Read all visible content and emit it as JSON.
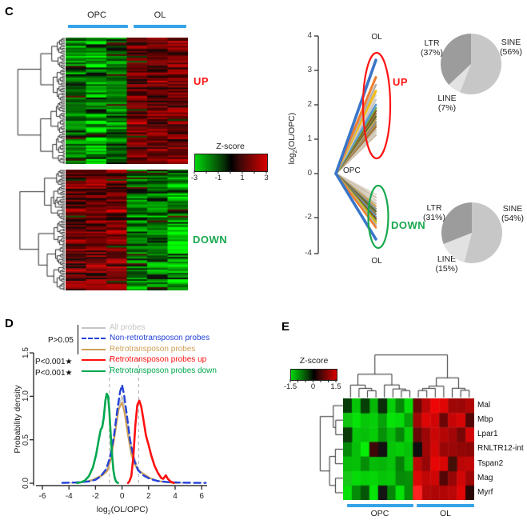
{
  "ui": {
    "panelC": {
      "label": "C",
      "opc": "OPC",
      "ol": "OL",
      "up": "UP",
      "down": "DOWN",
      "up_color": "#ff1414",
      "down_color": "#17a84e",
      "bar_color": "#35a3e8",
      "colorbar_title": "Z-score",
      "colorbar_ticks": [
        "-3",
        "-1",
        "1",
        "3"
      ]
    },
    "fan": {
      "ylabel_base": "log",
      "ylabel_sub": "2",
      "ylabel_rest": "(OL/OPC)",
      "top_label": "OL",
      "origin_label": "OPC",
      "bottom_label": "OL",
      "up": "UP",
      "down": "DOWN",
      "up_color": "#ff1414",
      "down_color": "#17a84e"
    },
    "panelD": {
      "label": "D",
      "p_group": "P>0.05",
      "p_up": "P<0.001★",
      "p_down": "P<0.001★",
      "ylabel": "Probability density",
      "xlabel_base": "log",
      "xlabel_sub": "2",
      "xlabel_rest": "(OL/OPC)",
      "legend": [
        {
          "label": "All probes",
          "color": "#c4c4c4",
          "dash": false
        },
        {
          "label": "Non-retrotransposon probes",
          "color": "#2442d8",
          "dash": true
        },
        {
          "label": "Retrotransposon probes",
          "color": "#cfa057",
          "dash": false
        },
        {
          "label": "Retrotransposon probes up",
          "color": "#ff1010",
          "dash": false
        },
        {
          "label": "Retrotransposon probes down",
          "color": "#00a74f",
          "dash": false
        }
      ]
    },
    "panelE": {
      "label": "E",
      "colorbar_title": "Z-score",
      "colorbar_ticks": [
        "-1.5",
        "0",
        "1.5"
      ],
      "opc": "OPC",
      "ol": "OL",
      "bar_color": "#35a3e8"
    }
  },
  "chart_data": [
    {
      "id": "panelC-heatmap-up",
      "type": "heatmap",
      "col_groups": [
        {
          "label": "OPC",
          "cols": 3
        },
        {
          "label": "OL",
          "cols": 3
        }
      ],
      "cluster_label": "UP",
      "zscale": {
        "min": -3,
        "max": 3,
        "low_color": "#00d60a",
        "mid_color": "#000000",
        "high_color": "#d90000"
      },
      "pattern": "rows clustered by dendrogram; OPC columns predominantly green (low z-score), OL columns predominantly red (high z-score)"
    },
    {
      "id": "panelC-heatmap-down",
      "type": "heatmap",
      "col_groups": [
        {
          "label": "OPC",
          "cols": 3
        },
        {
          "label": "OL",
          "cols": 3
        }
      ],
      "cluster_label": "DOWN",
      "zscale": {
        "min": -3,
        "max": 3
      },
      "pattern": "OPC columns predominantly red (high z-score), OL columns predominantly green (low z-score)"
    },
    {
      "id": "fan-parallel-plot",
      "type": "line",
      "ylabel": "log2(OL/OPC)",
      "yticks": [
        4,
        3,
        2,
        1,
        0,
        -2,
        -4
      ],
      "x_categories": [
        "OPC",
        "OL"
      ],
      "up_lines": [
        {
          "v": 3.3,
          "c": "#3a76c8",
          "w": 3.6
        },
        {
          "v": 2.8,
          "c": "#ee7d2f",
          "w": 3
        },
        {
          "v": 2.58,
          "c": "#b3b0ad",
          "w": 2.6
        },
        {
          "v": 2.4,
          "c": "#f2bb0e",
          "w": 3
        },
        {
          "v": 2.28,
          "c": "#d8d2cb",
          "w": 2.2
        },
        {
          "v": 2.15,
          "c": "#c9c2ba",
          "w": 2.2
        },
        {
          "v": 2.0,
          "c": "#5b9bd5",
          "w": 2.8
        },
        {
          "v": 1.9,
          "c": "#6faa45",
          "w": 2.8
        },
        {
          "v": 1.82,
          "c": "#8a4a12",
          "w": 2.4
        },
        {
          "v": 1.74,
          "c": "#9e7b45",
          "w": 2.4
        },
        {
          "v": 1.66,
          "c": "#4d6a2d",
          "w": 2.4
        },
        {
          "v": 1.58,
          "c": "#caa355",
          "w": 2.4
        },
        {
          "v": 1.5,
          "c": "#8c8c8c",
          "w": 2.4
        },
        {
          "v": 1.43,
          "c": "#b08d57",
          "w": 2.4
        },
        {
          "v": 1.36,
          "c": "#a4702c",
          "w": 2.4
        },
        {
          "v": 1.28,
          "c": "#c9bfae",
          "w": 2.4
        },
        {
          "v": 1.2,
          "c": "#d7cfc2",
          "w": 2.4
        },
        {
          "v": 1.12,
          "c": "#cdbfa8",
          "w": 2.4
        }
      ],
      "down_lines": [
        {
          "v": -3.2,
          "c": "#3a76c8",
          "w": 3.6
        },
        {
          "v": -2.55,
          "c": "#ee7d2f",
          "w": 2.5
        },
        {
          "v": -2.42,
          "c": "#b3b0ad",
          "w": 2.4
        },
        {
          "v": -2.3,
          "c": "#f2bb0e",
          "w": 2.5
        },
        {
          "v": -2.18,
          "c": "#6faa45",
          "w": 2.5
        },
        {
          "v": -2.06,
          "c": "#8a4a12",
          "w": 2.4
        },
        {
          "v": -1.95,
          "c": "#5b9bd5",
          "w": 2.2
        },
        {
          "v": -1.84,
          "c": "#9e7b45",
          "w": 2.2
        },
        {
          "v": -1.72,
          "c": "#4d6a2d",
          "w": 2.2
        },
        {
          "v": -1.6,
          "c": "#8c8c8c",
          "w": 2.2
        },
        {
          "v": -1.48,
          "c": "#caa355",
          "w": 2.2
        },
        {
          "v": -1.36,
          "c": "#c9bfae",
          "w": 2.2
        },
        {
          "v": -1.22,
          "c": "#d7cfc2",
          "w": 2.2
        },
        {
          "v": -1.08,
          "c": "#cdbfa8",
          "w": 2.2
        },
        {
          "v": -0.95,
          "c": "#e0d9cf",
          "w": 2.2
        }
      ]
    },
    {
      "id": "pie-up",
      "type": "pie",
      "labels": [
        "SINE",
        "LINE",
        "LTR"
      ],
      "pct_labels": [
        "(56%)",
        "(7%)",
        "(37%)"
      ],
      "values": [
        56,
        7,
        37
      ],
      "colors": [
        "#c7c7c7",
        "#e2e2e2",
        "#9c9c9c"
      ]
    },
    {
      "id": "pie-down",
      "type": "pie",
      "labels": [
        "SINE",
        "LINE",
        "LTR"
      ],
      "pct_labels": [
        "(54%)",
        "(15%)",
        "(31%)"
      ],
      "values": [
        54,
        15,
        31
      ],
      "colors": [
        "#c7c7c7",
        "#e2e2e2",
        "#9c9c9c"
      ]
    },
    {
      "id": "density",
      "type": "line",
      "xlabel": "log2(OL/OPC)",
      "ylabel": "Probability density",
      "xticks": [
        -6,
        -4,
        -2,
        0,
        2,
        4,
        6
      ],
      "yticks": [
        0,
        0.5,
        1,
        1.5
      ],
      "xlim": [
        -6.5,
        6.5
      ],
      "ylim": [
        0,
        1.5
      ],
      "vlines": [
        -0.95,
        1.25
      ],
      "series": [
        {
          "name": "All probes",
          "color": "#c4c4c4",
          "dash": false,
          "width": 1.8,
          "points": [
            [
              -4.4,
              0
            ],
            [
              -3,
              0.01
            ],
            [
              -2.2,
              0.03
            ],
            [
              -1.6,
              0.07
            ],
            [
              -1.2,
              0.13
            ],
            [
              -0.8,
              0.32
            ],
            [
              -0.5,
              0.62
            ],
            [
              -0.25,
              0.88
            ],
            [
              0,
              1.0
            ],
            [
              0.25,
              0.85
            ],
            [
              0.5,
              0.6
            ],
            [
              0.8,
              0.35
            ],
            [
              1.2,
              0.17
            ],
            [
              1.6,
              0.1
            ],
            [
              2,
              0.06
            ],
            [
              2.6,
              0.03
            ],
            [
              3.2,
              0.015
            ],
            [
              4,
              0.005
            ],
            [
              5,
              0.002
            ]
          ]
        },
        {
          "name": "Retrotransposon probes",
          "color": "#cfa057",
          "dash": false,
          "width": 2,
          "points": [
            [
              -3.6,
              0.005
            ],
            [
              -2.8,
              0.015
            ],
            [
              -2.2,
              0.04
            ],
            [
              -1.8,
              0.07
            ],
            [
              -1.4,
              0.1
            ],
            [
              -1.1,
              0.14
            ],
            [
              -0.8,
              0.3
            ],
            [
              -0.5,
              0.6
            ],
            [
              -0.25,
              0.85
            ],
            [
              0,
              0.93
            ],
            [
              0.2,
              0.8
            ],
            [
              0.45,
              0.55
            ],
            [
              0.7,
              0.33
            ],
            [
              1,
              0.2
            ],
            [
              1.3,
              0.14
            ],
            [
              1.7,
              0.1
            ],
            [
              2.1,
              0.06
            ],
            [
              2.6,
              0.03
            ],
            [
              3.1,
              0.015
            ],
            [
              3.8,
              0.005
            ],
            [
              4.2,
              0.002
            ]
          ]
        },
        {
          "name": "Non-retrotransposon probes",
          "color": "#2442d8",
          "dash": true,
          "width": 2.4,
          "points": [
            [
              -4.5,
              0.004
            ],
            [
              -3.5,
              0.008
            ],
            [
              -2.5,
              0.02
            ],
            [
              -2,
              0.04
            ],
            [
              -1.6,
              0.08
            ],
            [
              -1.2,
              0.16
            ],
            [
              -0.9,
              0.3
            ],
            [
              -0.6,
              0.55
            ],
            [
              -0.35,
              0.85
            ],
            [
              -0.15,
              1.05
            ],
            [
              0,
              1.13
            ],
            [
              0.15,
              1.02
            ],
            [
              0.35,
              0.8
            ],
            [
              0.6,
              0.5
            ],
            [
              0.9,
              0.27
            ],
            [
              1.2,
              0.15
            ],
            [
              1.6,
              0.09
            ],
            [
              2.1,
              0.05
            ],
            [
              2.7,
              0.025
            ],
            [
              3.5,
              0.012
            ],
            [
              4.5,
              0.006
            ],
            [
              5.5,
              0.004
            ],
            [
              6.3,
              0.004
            ]
          ]
        },
        {
          "name": "Retrotransposon probes down",
          "color": "#00a74f",
          "dash": false,
          "width": 2.6,
          "points": [
            [
              -3.4,
              0.002
            ],
            [
              -3.1,
              0.01
            ],
            [
              -2.8,
              0.03
            ],
            [
              -2.5,
              0.08
            ],
            [
              -2.2,
              0.18
            ],
            [
              -1.95,
              0.33
            ],
            [
              -1.75,
              0.5
            ],
            [
              -1.6,
              0.62
            ],
            [
              -1.5,
              0.64
            ],
            [
              -1.38,
              0.75
            ],
            [
              -1.25,
              0.95
            ],
            [
              -1.15,
              1.03
            ],
            [
              -1.05,
              1.0
            ],
            [
              -0.95,
              0.82
            ],
            [
              -0.85,
              0.55
            ],
            [
              -0.75,
              0.32
            ],
            [
              -0.65,
              0.15
            ],
            [
              -0.55,
              0.06
            ],
            [
              -0.45,
              0.02
            ],
            [
              -0.3,
              0.002
            ]
          ]
        },
        {
          "name": "Retrotransposon probes up",
          "color": "#ff1010",
          "dash": false,
          "width": 2.6,
          "points": [
            [
              0.45,
              0.002
            ],
            [
              0.55,
              0.02
            ],
            [
              0.7,
              0.08
            ],
            [
              0.85,
              0.3
            ],
            [
              1,
              0.66
            ],
            [
              1.15,
              0.9
            ],
            [
              1.3,
              0.95
            ],
            [
              1.45,
              0.88
            ],
            [
              1.6,
              0.74
            ],
            [
              1.8,
              0.55
            ],
            [
              2,
              0.44
            ],
            [
              2.2,
              0.32
            ],
            [
              2.45,
              0.2
            ],
            [
              2.7,
              0.12
            ],
            [
              2.95,
              0.06
            ],
            [
              3.1,
              0.05
            ],
            [
              3.3,
              0.09
            ],
            [
              3.45,
              0.05
            ],
            [
              3.65,
              0.02
            ],
            [
              3.9,
              0.002
            ]
          ]
        }
      ]
    },
    {
      "id": "panelE-heatmap",
      "type": "heatmap",
      "rows": [
        "Mal",
        "Mbp",
        "Lpar1",
        "RNLTR12-int",
        "Tspan2",
        "Mag",
        "Myrf"
      ],
      "col_groups": [
        {
          "label": "OPC",
          "cols": 8
        },
        {
          "label": "OL",
          "cols": 7
        }
      ],
      "zscale": {
        "min": -1.5,
        "max": 1.5,
        "low_color": "#00d60a",
        "mid_color": "#000000",
        "high_color": "#d90000"
      },
      "pattern": "all genes low (green) in OPC columns and high (red) in OL columns; clustered by row and column dendrograms"
    }
  ]
}
